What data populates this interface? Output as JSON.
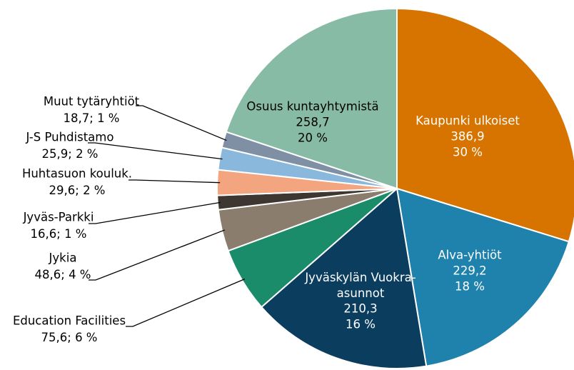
{
  "chart_data": {
    "type": "pie",
    "categories": [
      "Kaupunki ulkoiset",
      "Alva-yhtiöt",
      "Jyväskylän Vuokra-asunnot",
      "Education Facilities",
      "Jykia",
      "Jyväs-Parkki",
      "Huhtasuon kouluk.",
      "J-S Puhdistamo",
      "Muut tytäryhtiöt",
      "Osuus kuntayhtymistä"
    ],
    "values": [
      386.9,
      229.2,
      210.3,
      75.6,
      48.6,
      16.6,
      29.6,
      25.9,
      18.7,
      258.7
    ],
    "value_labels": [
      "386,9",
      "229,2",
      "210,3",
      "75,6",
      "48,6",
      "16,6",
      "29,6",
      "25,9",
      "18,7",
      "258,7"
    ],
    "percents": [
      30,
      18,
      16,
      6,
      4,
      1,
      2,
      2,
      1,
      20
    ],
    "percent_labels": [
      "30 %",
      "18 %",
      "16 %",
      "6 %",
      "4 %",
      "1 %",
      "2 %",
      "2 %",
      "1 %",
      "20 %"
    ],
    "label_separator": "; ",
    "colors": [
      "#d77400",
      "#1f82ad",
      "#0b3d5f",
      "#1a8c6a",
      "#8b7d6e",
      "#3e3631",
      "#f2a57e",
      "#8ab8dc",
      "#8090a4",
      "#88bba6"
    ]
  }
}
